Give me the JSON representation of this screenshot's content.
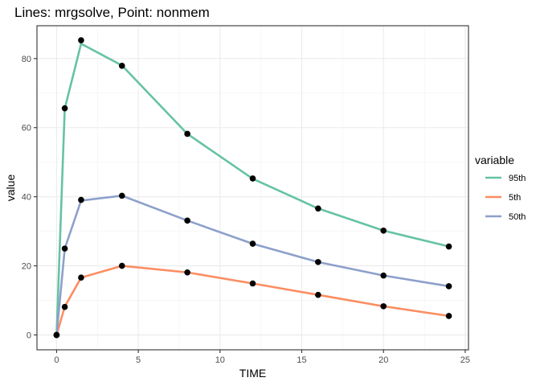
{
  "chart_data": {
    "type": "line",
    "title": "Lines: mrgsolve, Point: nonmem",
    "xlabel": "TIME",
    "ylabel": "value",
    "xlim": [
      -1.2,
      25.2
    ],
    "ylim": [
      -4.3,
      89.5
    ],
    "xticks": [
      0,
      5,
      10,
      15,
      20,
      25
    ],
    "yticks": [
      0,
      20,
      40,
      60,
      80
    ],
    "grid": true,
    "legend": {
      "title": "variable",
      "position": "right"
    },
    "x": [
      0,
      0.5,
      1.5,
      4,
      8,
      12,
      16,
      20,
      24
    ],
    "series": [
      {
        "name": "95th",
        "color": "#66c2a5",
        "line": [
          0,
          65.5,
          84.3,
          78,
          58.2,
          45.2,
          36.6,
          30.2,
          25.6
        ],
        "points": [
          0,
          65.6,
          85.3,
          77.9,
          58.2,
          45.3,
          36.6,
          30.2,
          25.6
        ]
      },
      {
        "name": "5th",
        "color": "#fc8d62",
        "line": [
          0,
          8.2,
          16.6,
          20,
          18.1,
          14.9,
          11.6,
          8.3,
          5.5
        ],
        "points": [
          0,
          8.1,
          16.6,
          20,
          18.1,
          14.9,
          11.6,
          8.3,
          5.5
        ]
      },
      {
        "name": "50th",
        "color": "#8da0cb",
        "line": [
          0,
          25,
          38.9,
          40.3,
          33.1,
          26.4,
          21.1,
          17.2,
          14.1
        ],
        "points": [
          0,
          25,
          39.1,
          40.3,
          33.1,
          26.4,
          21.1,
          17.2,
          14.1
        ]
      }
    ]
  }
}
